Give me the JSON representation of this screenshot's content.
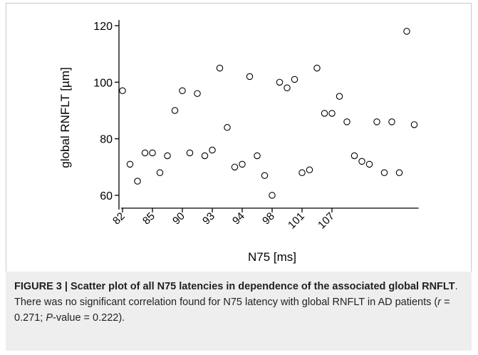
{
  "chart_data": {
    "type": "scatter",
    "xlabel": "N75 [ms]",
    "ylabel": "global RNFLT [µm]",
    "ylim": [
      55,
      122
    ],
    "yticks": [
      60,
      80,
      100,
      120
    ],
    "x_tick_labels": [
      "82",
      "85",
      "90",
      "93",
      "94",
      "98",
      "101",
      "107"
    ],
    "x_tick_index": [
      0,
      4,
      8,
      12,
      16,
      20,
      24,
      28
    ],
    "points": [
      {
        "i": 0,
        "y": 97
      },
      {
        "i": 1,
        "y": 71
      },
      {
        "i": 2,
        "y": 65
      },
      {
        "i": 3,
        "y": 75
      },
      {
        "i": 4,
        "y": 75
      },
      {
        "i": 5,
        "y": 68
      },
      {
        "i": 6,
        "y": 74
      },
      {
        "i": 7,
        "y": 90
      },
      {
        "i": 8,
        "y": 97
      },
      {
        "i": 9,
        "y": 75
      },
      {
        "i": 10,
        "y": 96
      },
      {
        "i": 11,
        "y": 74
      },
      {
        "i": 12,
        "y": 76
      },
      {
        "i": 13,
        "y": 105
      },
      {
        "i": 14,
        "y": 84
      },
      {
        "i": 15,
        "y": 70
      },
      {
        "i": 16,
        "y": 71
      },
      {
        "i": 17,
        "y": 102
      },
      {
        "i": 18,
        "y": 74
      },
      {
        "i": 19,
        "y": 67
      },
      {
        "i": 20,
        "y": 60
      },
      {
        "i": 21,
        "y": 100
      },
      {
        "i": 22,
        "y": 98
      },
      {
        "i": 23,
        "y": 101
      },
      {
        "i": 24,
        "y": 68
      },
      {
        "i": 25,
        "y": 69
      },
      {
        "i": 26,
        "y": 105
      },
      {
        "i": 27,
        "y": 89
      },
      {
        "i": 28,
        "y": 89
      },
      {
        "i": 29,
        "y": 95
      },
      {
        "i": 30,
        "y": 86
      },
      {
        "i": 31,
        "y": 74
      },
      {
        "i": 32,
        "y": 72
      },
      {
        "i": 33,
        "y": 71
      },
      {
        "i": 34,
        "y": 86
      },
      {
        "i": 35,
        "y": 68
      },
      {
        "i": 36,
        "y": 86
      },
      {
        "i": 37,
        "y": 68
      },
      {
        "i": 38,
        "y": 118
      },
      {
        "i": 39,
        "y": 85
      }
    ]
  },
  "caption": {
    "figure_label": "FIGURE 3 | Scatter plot of all N75 latencies in dependence of the associated global RNFLT",
    "text_part1": ". There was no significant correlation found for N75 latency with global RNFLT in AD patients (",
    "r_symbol": "r",
    "text_part2": " = 0.271; ",
    "p_symbol": "P",
    "text_part3": "-value = 0.222)."
  },
  "colors": {
    "caption_background": "#eeeeee",
    "frame_border": "#c9c9c9",
    "marker_stroke": "#000000"
  }
}
